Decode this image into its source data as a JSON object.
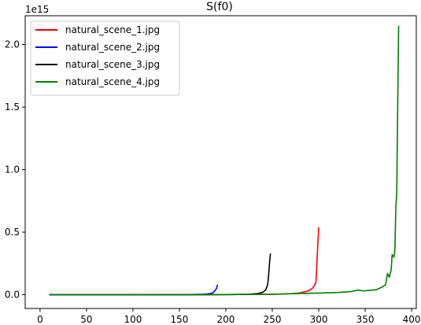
{
  "chart_data": {
    "type": "line",
    "title": "S(f0)",
    "xlabel": "",
    "ylabel": "",
    "y_exponent_label": "1e15",
    "xlim": [
      -16,
      405
    ],
    "ylim": [
      -0.11,
      2.23
    ],
    "x_ticks": [
      0,
      50,
      100,
      150,
      200,
      250,
      300,
      350,
      400
    ],
    "x_tick_labels": [
      "0",
      "50",
      "100",
      "150",
      "200",
      "250",
      "300",
      "350",
      "400"
    ],
    "y_ticks": [
      0.0,
      0.5,
      1.0,
      1.5,
      2.0
    ],
    "y_tick_labels": [
      "0.0",
      "0.5",
      "1.0",
      "1.5",
      "2.0"
    ],
    "grid": false,
    "legend_position": "top-left",
    "series": [
      {
        "name": "natural_scene_1.jpg",
        "color": "#ff0000",
        "points": [
          [
            10,
            0.0
          ],
          [
            100,
            0.0
          ],
          [
            200,
            0.001
          ],
          [
            250,
            0.003
          ],
          [
            270,
            0.008
          ],
          [
            280,
            0.015
          ],
          [
            286,
            0.025
          ],
          [
            290,
            0.035
          ],
          [
            293,
            0.05
          ],
          [
            295,
            0.07
          ],
          [
            297,
            0.1
          ],
          [
            298,
            0.25
          ],
          [
            299,
            0.4
          ],
          [
            300,
            0.54
          ]
        ]
      },
      {
        "name": "natural_scene_2.jpg",
        "color": "#0000ff",
        "points": [
          [
            10,
            0.0
          ],
          [
            100,
            0.0
          ],
          [
            160,
            0.001
          ],
          [
            175,
            0.003
          ],
          [
            182,
            0.008
          ],
          [
            186,
            0.015
          ],
          [
            188,
            0.03
          ],
          [
            190,
            0.05
          ],
          [
            191,
            0.08
          ]
        ]
      },
      {
        "name": "natural_scene_3.jpg",
        "color": "#000000",
        "points": [
          [
            10,
            0.0
          ],
          [
            100,
            0.0
          ],
          [
            200,
            0.001
          ],
          [
            225,
            0.003
          ],
          [
            235,
            0.01
          ],
          [
            240,
            0.02
          ],
          [
            243,
            0.04
          ],
          [
            245,
            0.08
          ],
          [
            246,
            0.15
          ],
          [
            247,
            0.25
          ],
          [
            248,
            0.33
          ]
        ]
      },
      {
        "name": "natural_scene_4.jpg",
        "color": "#008000",
        "points": [
          [
            10,
            0.0
          ],
          [
            100,
            0.0
          ],
          [
            200,
            0.001
          ],
          [
            250,
            0.004
          ],
          [
            280,
            0.01
          ],
          [
            300,
            0.013
          ],
          [
            320,
            0.018
          ],
          [
            335,
            0.025
          ],
          [
            342,
            0.038
          ],
          [
            348,
            0.03
          ],
          [
            355,
            0.035
          ],
          [
            362,
            0.04
          ],
          [
            368,
            0.06
          ],
          [
            372,
            0.08
          ],
          [
            374,
            0.17
          ],
          [
            376,
            0.14
          ],
          [
            378,
            0.2
          ],
          [
            379,
            0.32
          ],
          [
            381,
            0.3
          ],
          [
            382,
            0.36
          ],
          [
            383,
            0.7
          ],
          [
            384,
            0.82
          ],
          [
            385,
            1.5
          ],
          [
            386,
            2.15
          ]
        ]
      }
    ]
  }
}
